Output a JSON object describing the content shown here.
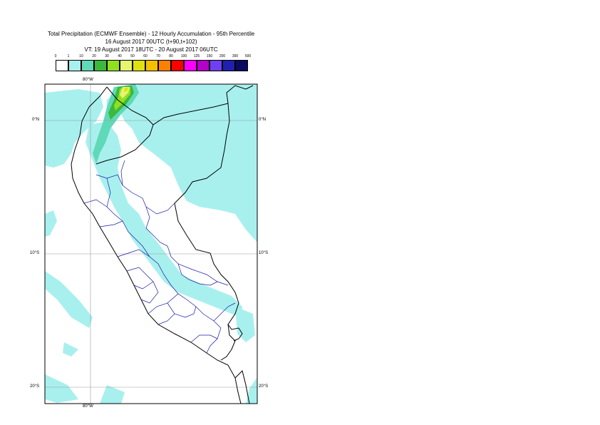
{
  "title": {
    "line1": "Total Precipitation (ECMWF Ensemble) - 12 Hourly Accumulation - 95th Percentile",
    "line2": "16 August 2017 00UTC (t+90,t+102)",
    "line3": "VT: 19 August 2017 18UTC - 20 August 2017 06UTC"
  },
  "legend": {
    "labels": [
      "0",
      "1",
      "10",
      "20",
      "30",
      "40",
      "50",
      "60",
      "70",
      "80",
      "100",
      "125",
      "150",
      "200",
      "300",
      "500"
    ],
    "colors": [
      "#ffffff",
      "#a8f0ee",
      "#5fd9b8",
      "#3cb93c",
      "#90e020",
      "#e6f570",
      "#e0e010",
      "#f5c000",
      "#ff8000",
      "#ff0000",
      "#ff00ff",
      "#b400c8",
      "#7040f0",
      "#2020b0",
      "#0a0a60"
    ]
  },
  "axes": {
    "lon_top": "80°W",
    "lon_bottom": "80°W",
    "lat_0_left": "0°N",
    "lat_0_right": "0°N",
    "lat_10_left": "10°S",
    "lat_10_right": "10°S",
    "lat_20_left": "20°S",
    "lat_20_right": "20°S"
  }
}
